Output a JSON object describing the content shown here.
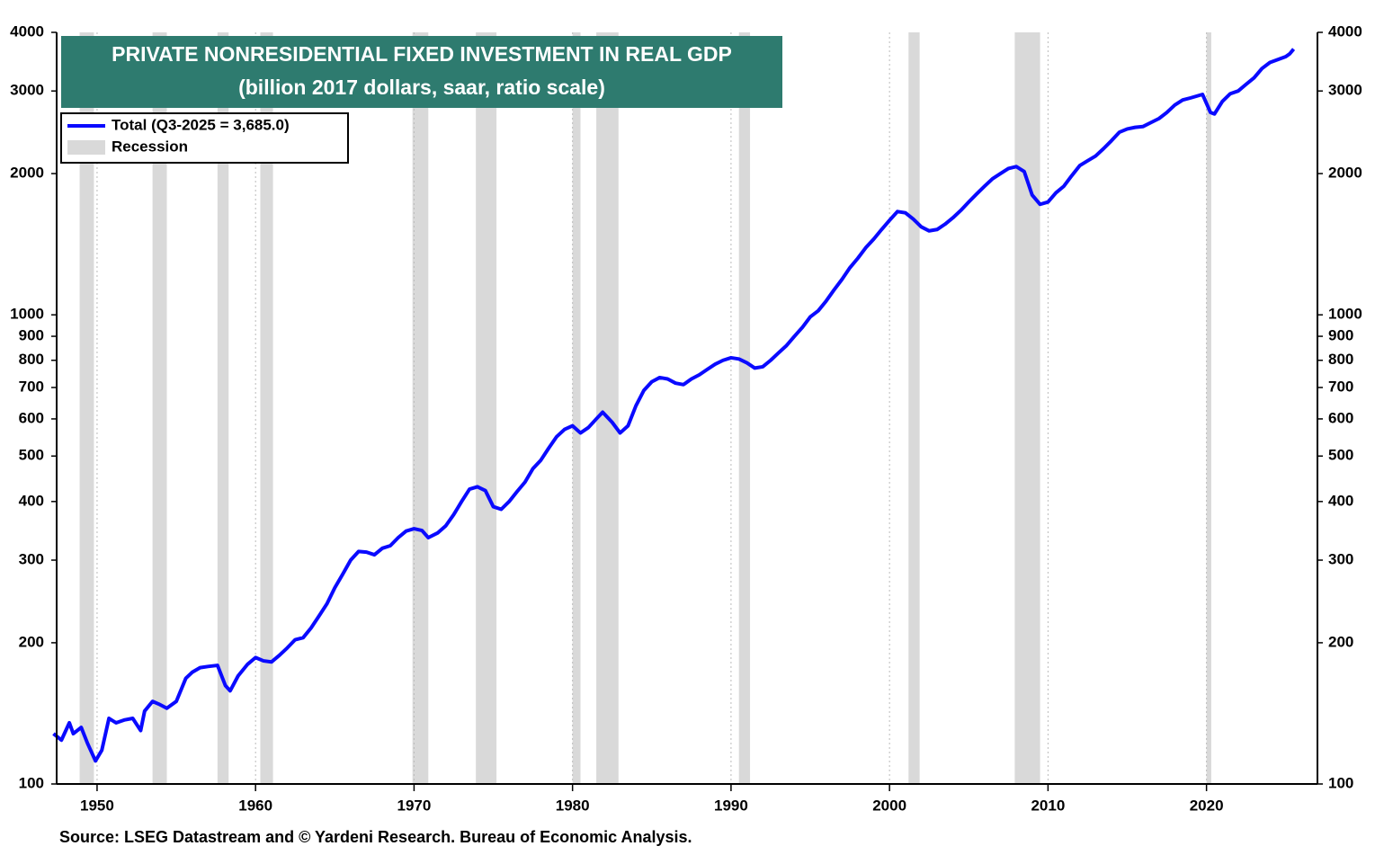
{
  "chart_data": {
    "type": "line",
    "title": "PRIVATE NONRESIDENTIAL FIXED INVESTMENT IN REAL GDP",
    "subtitle": "(billion 2017 dollars, saar, ratio scale)",
    "source": "Source: LSEG Datastream and © Yardeni Research. Bureau of Economic Analysis.",
    "yscale": "log",
    "mirror_y_axis": true,
    "xgrid": true,
    "legend": "top-left",
    "xlim": [
      1947.45,
      2027
    ],
    "ylim": [
      100,
      4000
    ],
    "xticks": [
      1950,
      1960,
      1970,
      1980,
      1990,
      2000,
      2010,
      2020
    ],
    "yticks": [
      100,
      200,
      300,
      400,
      500,
      600,
      700,
      800,
      900,
      1000,
      2000,
      3000,
      4000
    ],
    "recessions": {
      "name": "Recession",
      "color": "#d9d9d9",
      "periods": [
        [
          1948.9,
          1949.8
        ],
        [
          1953.5,
          1954.4
        ],
        [
          1957.6,
          1958.3
        ],
        [
          1960.3,
          1961.1
        ],
        [
          1969.9,
          1970.9
        ],
        [
          1973.9,
          1975.2
        ],
        [
          1980.0,
          1980.5
        ],
        [
          1981.5,
          1982.9
        ],
        [
          1990.5,
          1991.2
        ],
        [
          2001.2,
          2001.9
        ],
        [
          2007.9,
          2009.5
        ],
        [
          2020.0,
          2020.3
        ]
      ]
    },
    "x": [
      1947.25,
      1947.75,
      1948.25,
      1948.5,
      1949.0,
      1949.4,
      1949.9,
      1950.3,
      1950.75,
      1951.2,
      1951.75,
      1952.25,
      1952.75,
      1953.0,
      1953.5,
      1953.9,
      1954.4,
      1955.0,
      1955.6,
      1956.0,
      1956.5,
      1957.0,
      1957.6,
      1958.1,
      1958.4,
      1958.9,
      1959.5,
      1960.0,
      1960.5,
      1961.0,
      1961.5,
      1962.0,
      1962.5,
      1963.0,
      1963.5,
      1964.0,
      1964.5,
      1965.0,
      1965.5,
      1966.0,
      1966.5,
      1967.0,
      1967.5,
      1968.0,
      1968.5,
      1969.0,
      1969.5,
      1970.0,
      1970.5,
      1970.9,
      1971.5,
      1972.0,
      1972.5,
      1973.0,
      1973.5,
      1974.0,
      1974.5,
      1975.0,
      1975.5,
      1976.0,
      1976.5,
      1977.0,
      1977.5,
      1978.0,
      1978.5,
      1979.0,
      1979.5,
      1980.0,
      1980.5,
      1981.0,
      1981.5,
      1981.9,
      1982.5,
      1983.0,
      1983.5,
      1984.0,
      1984.5,
      1985.0,
      1985.5,
      1986.0,
      1986.5,
      1987.0,
      1987.5,
      1988.0,
      1988.5,
      1989.0,
      1989.5,
      1990.0,
      1990.5,
      1991.0,
      1991.5,
      1992.0,
      1992.5,
      1993.0,
      1993.5,
      1994.0,
      1994.5,
      1995.0,
      1995.5,
      1996.0,
      1996.5,
      1997.0,
      1997.5,
      1998.0,
      1998.5,
      1999.0,
      1999.5,
      2000.0,
      2000.5,
      2001.0,
      2001.5,
      2002.0,
      2002.5,
      2003.0,
      2003.5,
      2004.0,
      2004.5,
      2005.0,
      2005.5,
      2006.0,
      2006.5,
      2007.0,
      2007.5,
      2008.0,
      2008.5,
      2009.0,
      2009.5,
      2010.0,
      2010.5,
      2011.0,
      2011.5,
      2012.0,
      2012.5,
      2013.0,
      2013.5,
      2014.0,
      2014.5,
      2015.0,
      2015.5,
      2016.0,
      2016.5,
      2017.0,
      2017.5,
      2018.0,
      2018.5,
      2019.0,
      2019.75,
      2020.25,
      2020.5,
      2021.0,
      2021.5,
      2022.0,
      2022.5,
      2023.0,
      2023.5,
      2024.0,
      2024.5,
      2025.0,
      2025.25,
      2025.5
    ],
    "series": [
      {
        "name": "Total  (Q3-2025 = 3,685.0)",
        "color": "#0a0aff",
        "values": [
          128,
          124,
          135,
          128,
          132,
          122,
          112,
          118,
          138,
          135,
          137,
          138,
          130,
          143,
          150,
          148,
          145,
          150,
          168,
          173,
          177,
          178,
          179,
          162,
          158,
          170,
          180,
          186,
          183,
          182,
          188,
          195,
          203,
          205,
          215,
          228,
          242,
          262,
          280,
          300,
          313,
          312,
          308,
          318,
          322,
          335,
          346,
          350,
          347,
          335,
          343,
          355,
          375,
          400,
          425,
          430,
          422,
          390,
          385,
          400,
          420,
          440,
          470,
          490,
          520,
          550,
          570,
          580,
          560,
          575,
          600,
          620,
          590,
          560,
          580,
          640,
          690,
          720,
          735,
          730,
          715,
          710,
          730,
          745,
          765,
          785,
          800,
          810,
          805,
          790,
          770,
          775,
          800,
          830,
          860,
          900,
          940,
          990,
          1020,
          1070,
          1130,
          1190,
          1260,
          1320,
          1390,
          1450,
          1520,
          1590,
          1660,
          1650,
          1600,
          1540,
          1510,
          1520,
          1560,
          1610,
          1670,
          1740,
          1810,
          1880,
          1950,
          2000,
          2050,
          2070,
          2020,
          1800,
          1720,
          1740,
          1820,
          1880,
          1980,
          2080,
          2130,
          2180,
          2260,
          2350,
          2450,
          2490,
          2510,
          2520,
          2570,
          2620,
          2700,
          2800,
          2870,
          2900,
          2950,
          2700,
          2680,
          2850,
          2960,
          3000,
          3100,
          3200,
          3350,
          3450,
          3500,
          3550,
          3600,
          3685
        ]
      }
    ]
  }
}
